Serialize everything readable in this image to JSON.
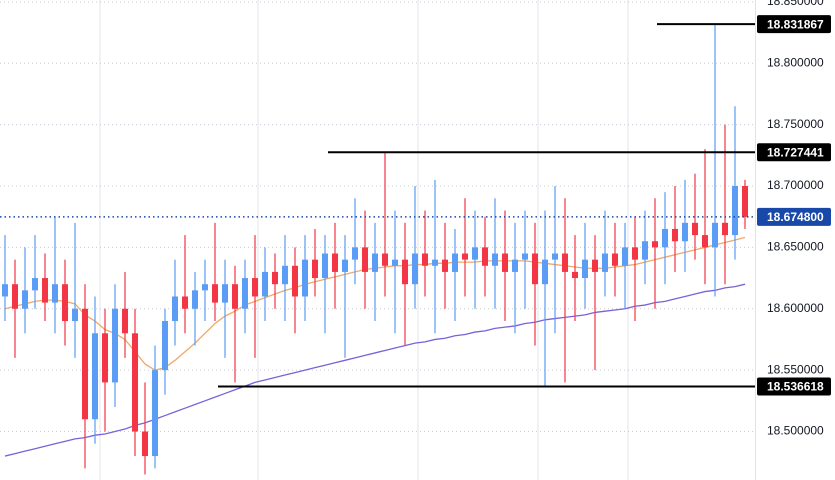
{
  "chart_data": {
    "type": "candlestick",
    "ylim": [
      18.4605,
      18.8515
    ],
    "yticks": [
      {
        "value": 18.85,
        "label": "18.850000"
      },
      {
        "value": 18.8,
        "label": "18.800000"
      },
      {
        "value": 18.75,
        "label": "18.750000"
      },
      {
        "value": 18.7,
        "label": "18.700000"
      },
      {
        "value": 18.65,
        "label": "18.650000"
      },
      {
        "value": 18.6,
        "label": "18.600000"
      },
      {
        "value": 18.55,
        "label": "18.550000"
      },
      {
        "value": 18.5,
        "label": "18.500000"
      }
    ],
    "grid": true,
    "up_color": "#5b9cf5",
    "down_color": "#f23645",
    "open": [
      18.61,
      18.62,
      18.6,
      18.615,
      18.625,
      18.605,
      18.62,
      18.59,
      18.6,
      18.51,
      18.58,
      18.54,
      18.6,
      18.58,
      18.5,
      18.48,
      18.55,
      18.59,
      18.61,
      18.6,
      18.615,
      18.62,
      18.605,
      18.62,
      18.6,
      18.625,
      18.61,
      18.63,
      18.62,
      18.635,
      18.61,
      18.64,
      18.625,
      18.645,
      18.63,
      18.64,
      18.65,
      18.63,
      18.645,
      18.635,
      18.64,
      18.62,
      18.645,
      18.635,
      18.64,
      18.63,
      18.645,
      18.64,
      18.65,
      18.635,
      18.645,
      18.63,
      18.64,
      18.645,
      18.62,
      18.64,
      18.645,
      18.63,
      18.625,
      18.64,
      18.63,
      18.645,
      18.635,
      18.65,
      18.64,
      18.655,
      18.65,
      18.665,
      18.655,
      18.67,
      18.66,
      18.65,
      18.67,
      18.66,
      18.7
    ],
    "high": [
      18.66,
      18.64,
      18.65,
      18.66,
      18.645,
      18.675,
      18.64,
      18.67,
      18.62,
      18.61,
      18.6,
      18.62,
      18.63,
      18.6,
      18.54,
      18.57,
      18.6,
      18.64,
      18.66,
      18.63,
      18.64,
      18.67,
      18.64,
      18.635,
      18.64,
      18.66,
      18.65,
      18.645,
      18.66,
      18.65,
      18.66,
      18.665,
      18.66,
      18.67,
      18.66,
      18.69,
      18.68,
      18.67,
      18.727441,
      18.68,
      18.67,
      18.7,
      18.68,
      18.705,
      18.67,
      18.665,
      18.69,
      18.68,
      18.675,
      18.69,
      18.68,
      18.67,
      18.68,
      18.67,
      18.68,
      18.7,
      18.69,
      18.66,
      18.67,
      18.66,
      18.68,
      18.67,
      18.67,
      18.675,
      18.68,
      18.69,
      18.695,
      18.7,
      18.705,
      18.71,
      18.73,
      18.831867,
      18.75,
      18.765,
      18.705
    ],
    "low": [
      18.59,
      18.56,
      18.58,
      18.6,
      18.59,
      18.58,
      18.57,
      18.56,
      18.47,
      18.49,
      18.5,
      18.52,
      18.56,
      18.48,
      18.465,
      18.47,
      18.53,
      18.57,
      18.58,
      18.57,
      18.59,
      18.59,
      18.56,
      18.54,
      18.58,
      18.56,
      18.59,
      18.6,
      18.59,
      18.58,
      18.59,
      18.61,
      18.58,
      18.6,
      18.56,
      18.62,
      18.6,
      18.59,
      18.61,
      18.58,
      18.57,
      18.6,
      18.61,
      18.58,
      18.6,
      18.59,
      18.61,
      18.6,
      18.61,
      18.6,
      18.59,
      18.58,
      18.6,
      18.57,
      18.536618,
      18.58,
      18.54,
      18.59,
      18.6,
      18.55,
      18.61,
      18.61,
      18.6,
      18.59,
      18.62,
      18.6,
      18.62,
      18.63,
      18.63,
      18.64,
      18.62,
      18.61,
      18.62,
      18.64,
      18.665
    ],
    "close": [
      18.62,
      18.6,
      18.615,
      18.625,
      18.605,
      18.62,
      18.59,
      18.6,
      18.51,
      18.58,
      18.54,
      18.6,
      18.58,
      18.5,
      18.48,
      18.55,
      18.59,
      18.61,
      18.6,
      18.615,
      18.62,
      18.605,
      18.62,
      18.6,
      18.625,
      18.61,
      18.63,
      18.62,
      18.635,
      18.61,
      18.64,
      18.625,
      18.645,
      18.63,
      18.64,
      18.65,
      18.63,
      18.645,
      18.635,
      18.64,
      18.62,
      18.645,
      18.635,
      18.64,
      18.63,
      18.645,
      18.64,
      18.65,
      18.635,
      18.645,
      18.63,
      18.64,
      18.645,
      18.62,
      18.64,
      18.645,
      18.63,
      18.625,
      18.64,
      18.63,
      18.645,
      18.635,
      18.65,
      18.64,
      18.655,
      18.65,
      18.665,
      18.655,
      18.67,
      18.66,
      18.65,
      18.67,
      18.66,
      18.7,
      18.6748
    ],
    "series": [
      {
        "color": "#7b61d9",
        "values": [
          18.48,
          18.482,
          18.484,
          18.486,
          18.488,
          18.49,
          18.492,
          18.494,
          18.495,
          18.497,
          18.498,
          18.5,
          18.502,
          18.505,
          18.507,
          18.51,
          18.513,
          18.516,
          18.519,
          18.522,
          18.525,
          18.528,
          18.531,
          18.534,
          18.537,
          18.54,
          18.542,
          18.544,
          18.546,
          18.548,
          18.55,
          18.552,
          18.554,
          18.556,
          18.558,
          18.56,
          18.562,
          18.564,
          18.566,
          18.568,
          18.57,
          18.572,
          18.573,
          18.575,
          18.576,
          18.578,
          18.579,
          18.581,
          18.582,
          18.584,
          18.585,
          18.586,
          18.588,
          18.589,
          18.591,
          18.592,
          18.593,
          18.594,
          18.595,
          18.597,
          18.598,
          18.599,
          18.6,
          18.602,
          18.603,
          18.605,
          18.606,
          18.608,
          18.61,
          18.612,
          18.614,
          18.615,
          18.617,
          18.618,
          18.62
        ]
      },
      {
        "color": "#f0a868",
        "values": [
          18.6,
          18.602,
          18.604,
          18.606,
          18.607,
          18.607,
          18.606,
          18.604,
          18.595,
          18.59,
          18.583,
          18.58,
          18.575,
          18.565,
          18.555,
          18.55,
          18.552,
          18.558,
          18.565,
          18.572,
          18.58,
          18.588,
          18.594,
          18.598,
          18.603,
          18.606,
          18.609,
          18.612,
          18.615,
          18.617,
          18.62,
          18.622,
          18.624,
          18.626,
          18.628,
          18.63,
          18.632,
          18.633,
          18.634,
          18.635,
          18.635,
          18.636,
          18.636,
          18.637,
          18.637,
          18.638,
          18.638,
          18.638,
          18.639,
          18.639,
          18.639,
          18.639,
          18.639,
          18.638,
          18.637,
          18.636,
          18.635,
          18.634,
          18.633,
          18.633,
          18.633,
          18.634,
          18.635,
          18.636,
          18.638,
          18.64,
          18.642,
          18.644,
          18.646,
          18.648,
          18.65,
          18.652,
          18.654,
          18.656,
          18.658
        ]
      }
    ],
    "levels": [
      18.831867,
      18.727441,
      18.536618
    ],
    "level_color": "#000000",
    "last_price": {
      "value": 18.6748,
      "label": "18.674800"
    },
    "last_price_color": "#1848a8"
  }
}
